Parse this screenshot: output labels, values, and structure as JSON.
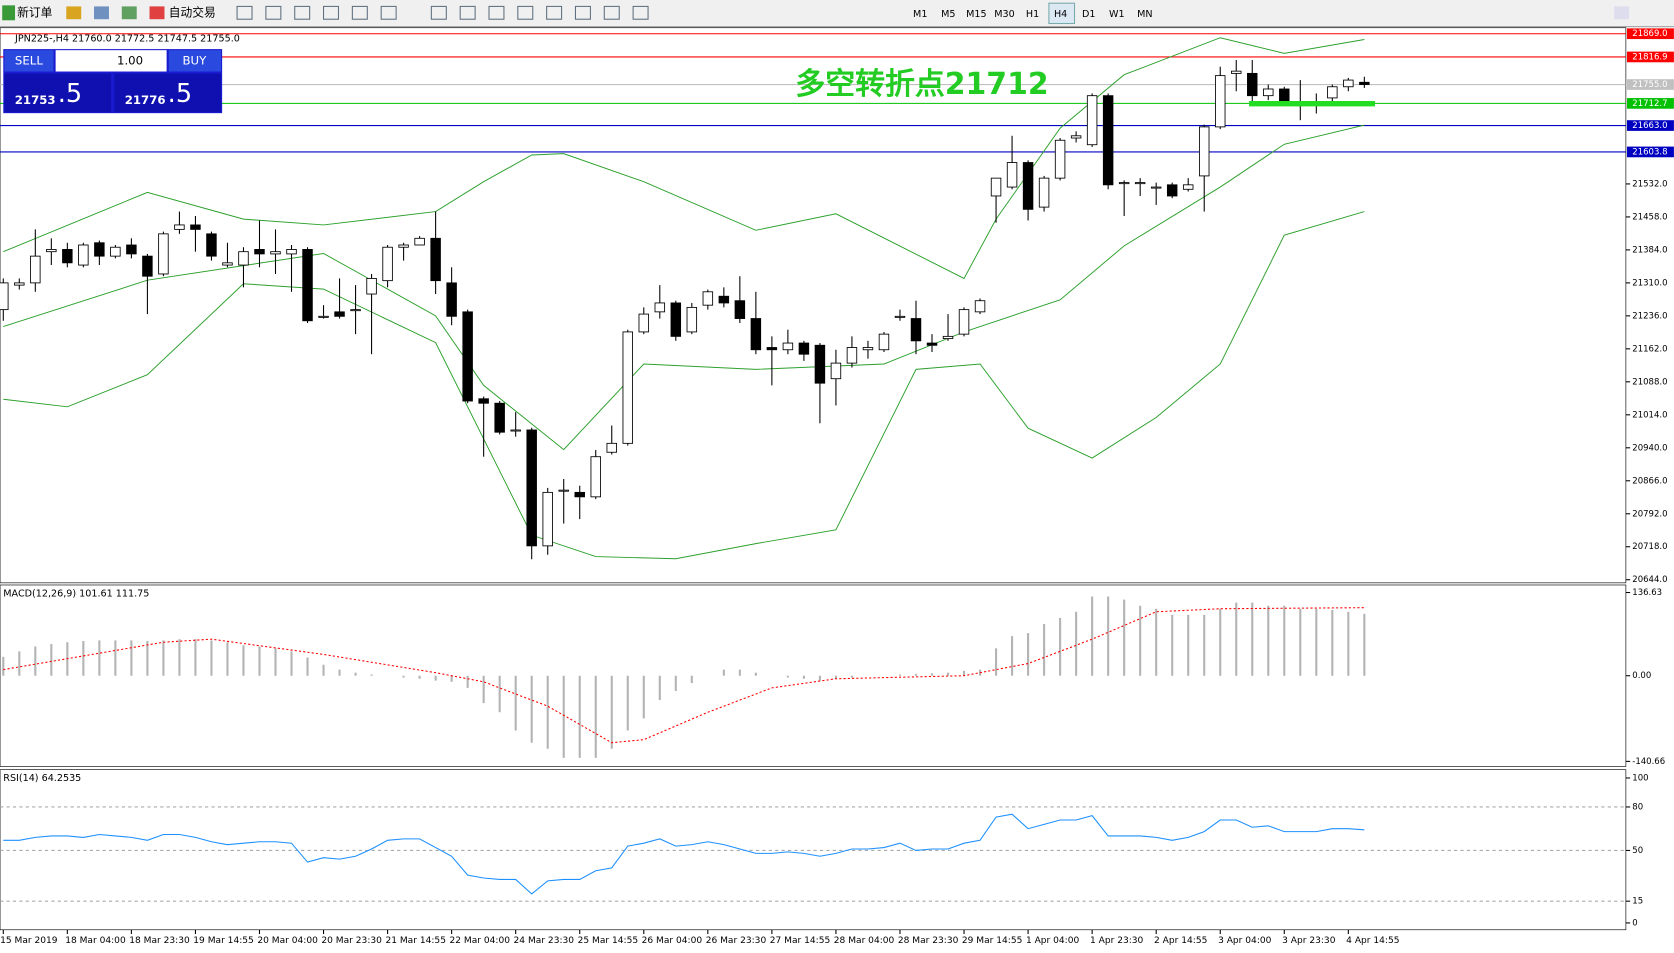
{
  "toolbar": {
    "new_order": "新订单",
    "auto_trading": "自动交易",
    "timeframes": [
      "M1",
      "M5",
      "M15",
      "M30",
      "H1",
      "H4",
      "D1",
      "W1",
      "MN"
    ]
  },
  "trade_panel": {
    "sell": "SELL",
    "buy": "BUY",
    "lots": "1.00",
    "bid_big": "21753",
    "bid_small": ".5",
    "ask_big": "21776",
    "ask_small": ".5"
  },
  "chart_data": {
    "type": "candlestick",
    "header": "JPN225-,H4  21760.0 21772.5 21747.5 21755.0",
    "annotation": {
      "text": "多空转折点21712",
      "value": 21712
    },
    "ylim": [
      20637,
      21880
    ],
    "yticks": [
      {
        "value": 21532,
        "label": "21532.0"
      },
      {
        "value": 21458,
        "label": "21458.0"
      },
      {
        "value": 21384,
        "label": "21384.0"
      },
      {
        "value": 21310,
        "label": "21310.0"
      },
      {
        "value": 21236,
        "label": "21236.0"
      },
      {
        "value": 21162,
        "label": "21162.0"
      },
      {
        "value": 21088,
        "label": "21088.0"
      },
      {
        "value": 21014,
        "label": "21014.0"
      },
      {
        "value": 20940,
        "label": "20940.0"
      },
      {
        "value": 20866,
        "label": "20866.0"
      },
      {
        "value": 20792,
        "label": "20792.0"
      },
      {
        "value": 20718,
        "label": "20718.0"
      },
      {
        "value": 20644,
        "label": "20644.0"
      }
    ],
    "levels": [
      {
        "value": 21869,
        "label": "21869.0",
        "color": "#ff0000"
      },
      {
        "value": 21816.9,
        "label": "21816.9",
        "color": "#ff0000"
      },
      {
        "value": 21755,
        "label": "21755.0",
        "color": "#c0c0c0"
      },
      {
        "value": 21712.7,
        "label": "21712.7",
        "color": "#00c000"
      },
      {
        "value": 21663,
        "label": "21663.0",
        "color": "#0000c0"
      },
      {
        "value": 21603.8,
        "label": "21603.8",
        "color": "#0000c0"
      }
    ],
    "x_labels": [
      "15 Mar 2019",
      "18 Mar 04:00",
      "18 Mar 23:30",
      "19 Mar 14:55",
      "20 Mar 04:00",
      "20 Mar 23:30",
      "21 Mar 14:55",
      "22 Mar 04:00",
      "24 Mar 23:30",
      "25 Mar 14:55",
      "26 Mar 04:00",
      "26 Mar 23:30",
      "27 Mar 14:55",
      "28 Mar 04:00",
      "28 Mar 23:30",
      "29 Mar 14:55",
      "1 Apr 04:00",
      "1 Apr 23:30",
      "2 Apr 14:55",
      "3 Apr 04:00",
      "3 Apr 23:30",
      "4 Apr 14:55"
    ],
    "candles": {
      "open": [
        21250,
        21305,
        21310,
        21380,
        21385,
        21350,
        21400,
        21370,
        21395,
        21370,
        21330,
        21430,
        21440,
        21420,
        21350,
        21350,
        21385,
        21375,
        21375,
        21385,
        21235,
        21245,
        21250,
        21285,
        21315,
        21390,
        21395,
        21410,
        21310,
        21245,
        21050,
        21040,
        20980,
        20980,
        20720,
        20845,
        20840,
        20830,
        20930,
        20950,
        21200,
        21245,
        21265,
        21200,
        21260,
        21280,
        21270,
        21230,
        21165,
        21160,
        21175,
        21170,
        21095,
        21130,
        21160,
        21160,
        21235,
        21230,
        21175,
        21185,
        21195,
        21245,
        21505,
        21525,
        21580,
        21480,
        21545,
        21635,
        21620,
        21730,
        21535,
        21535,
        21525,
        21530,
        21520,
        21550,
        21660,
        21780,
        21780,
        21730,
        21745,
        21710,
        21715,
        21725,
        21750,
        21760
      ],
      "high": [
        21320,
        21320,
        21430,
        21410,
        21400,
        21400,
        21405,
        21395,
        21410,
        21375,
        21425,
        21470,
        21460,
        21425,
        21400,
        21390,
        21450,
        21430,
        21395,
        21390,
        21260,
        21320,
        21305,
        21330,
        21395,
        21400,
        21415,
        21470,
        21345,
        21250,
        21055,
        21045,
        21020,
        20985,
        20850,
        20870,
        20855,
        20935,
        20990,
        21205,
        21255,
        21305,
        21270,
        21265,
        21295,
        21300,
        21325,
        21290,
        21190,
        21205,
        21180,
        21175,
        21160,
        21190,
        21180,
        21200,
        21250,
        21270,
        21195,
        21240,
        21255,
        21275,
        21545,
        21640,
        21585,
        21550,
        21635,
        21650,
        21735,
        21735,
        21540,
        21545,
        21535,
        21535,
        21545,
        21665,
        21795,
        21810,
        21810,
        21755,
        21750,
        21765,
        21735,
        21755,
        21770,
        21772.5
      ],
      "low": [
        21225,
        21295,
        21290,
        21350,
        21345,
        21345,
        21350,
        21365,
        21365,
        21240,
        21325,
        21420,
        21380,
        21360,
        21345,
        21300,
        21345,
        21330,
        21290,
        21220,
        21230,
        21230,
        21195,
        21150,
        21300,
        21360,
        21400,
        21285,
        21215,
        21040,
        20920,
        20970,
        20965,
        20690,
        20700,
        20770,
        20780,
        20825,
        20925,
        20945,
        21195,
        21230,
        21180,
        21195,
        21250,
        21255,
        21220,
        21150,
        21080,
        21150,
        21135,
        20995,
        21035,
        21120,
        21140,
        21155,
        21225,
        21150,
        21155,
        21180,
        21190,
        21240,
        21445,
        21520,
        21450,
        21470,
        21540,
        21625,
        21615,
        21520,
        21460,
        21505,
        21485,
        21500,
        21515,
        21470,
        21655,
        21740,
        21715,
        21720,
        21710,
        21675,
        21690,
        21715,
        21740,
        21747.5
      ],
      "close": [
        21310,
        21310,
        21370,
        21385,
        21355,
        21395,
        21370,
        21390,
        21375,
        21325,
        21420,
        21440,
        21430,
        21370,
        21355,
        21380,
        21375,
        21380,
        21385,
        21225,
        21235,
        21235,
        21250,
        21320,
        21390,
        21395,
        21410,
        21315,
        21235,
        21045,
        21040,
        20975,
        20980,
        20720,
        20840,
        20845,
        20830,
        20920,
        20950,
        21200,
        21240,
        21265,
        21190,
        21255,
        21290,
        21265,
        21230,
        21160,
        21160,
        21175,
        21150,
        21085,
        21130,
        21165,
        21165,
        21195,
        21235,
        21180,
        21170,
        21190,
        21250,
        21270,
        21545,
        21580,
        21475,
        21545,
        21630,
        21640,
        21730,
        21530,
        21535,
        21535,
        21525,
        21505,
        21530,
        21660,
        21775,
        21785,
        21730,
        21745,
        21715,
        21710,
        21715,
        21750,
        21765,
        21755
      ]
    },
    "bands": [
      {
        "name": "upper",
        "color": "#2ca02c",
        "index": [
          0,
          9,
          15,
          20,
          27,
          30,
          33,
          35,
          40,
          47,
          52,
          60,
          62,
          66,
          70,
          76,
          80,
          85
        ],
        "values": [
          21380,
          21513,
          21453,
          21440,
          21470,
          21537,
          21597,
          21600,
          21537,
          21428,
          21465,
          21320,
          21453,
          21657,
          21777,
          21860,
          21825,
          21856
        ]
      },
      {
        "name": "middle",
        "color": "#2ca02c",
        "index": [
          0,
          9,
          20,
          27,
          30,
          35,
          40,
          47,
          55,
          60,
          66,
          70,
          76,
          80,
          85
        ],
        "values": [
          21212,
          21316,
          21376,
          21236,
          21080,
          20936,
          21128,
          21116,
          21128,
          21200,
          21272,
          21393,
          21525,
          21621,
          21664
        ]
      },
      {
        "name": "lower",
        "color": "#2ca02c",
        "index": [
          0,
          4,
          9,
          15,
          20,
          27,
          33,
          37,
          42,
          47,
          52,
          57,
          61,
          64,
          68,
          72,
          76,
          80,
          85
        ],
        "values": [
          21049,
          21032,
          21104,
          21308,
          21296,
          21176,
          20744,
          20696,
          20691,
          20725,
          20756,
          21116,
          21128,
          20984,
          20917,
          21008,
          21128,
          21417,
          21470
        ]
      }
    ],
    "macd": {
      "header": "MACD(12,26,9) 101.61 111.75",
      "ylim": [
        -149,
        149
      ],
      "yticks": [
        {
          "value": 136.63,
          "label": "136.63"
        },
        {
          "value": 0,
          "label": "0.00"
        },
        {
          "value": -140.66,
          "label": "-140.66"
        }
      ],
      "histogram": [
        31,
        40,
        48,
        52,
        55,
        57,
        58,
        58,
        58,
        57,
        58,
        60,
        60,
        58,
        55,
        50,
        48,
        45,
        40,
        30,
        18,
        10,
        5,
        2,
        0,
        -3,
        -5,
        -8,
        -10,
        -20,
        -45,
        -60,
        -90,
        -110,
        -120,
        -135,
        -135,
        -135,
        -120,
        -90,
        -70,
        -40,
        -25,
        -12,
        0,
        10,
        10,
        5,
        0,
        -3,
        -5,
        -8,
        -5,
        -3,
        0,
        0,
        2,
        3,
        4,
        5,
        8,
        10,
        45,
        65,
        70,
        85,
        95,
        105,
        130,
        130,
        125,
        115,
        110,
        100,
        100,
        100,
        110,
        120,
        120,
        115,
        115,
        110,
        110,
        108,
        105,
        101.61
      ],
      "hist_color": "#b4b4b4",
      "signal": {
        "color": "#ff0000",
        "index": [
          0,
          10,
          13,
          20,
          27,
          30,
          34,
          38,
          40,
          44,
          48,
          52,
          60,
          64,
          68,
          72,
          76,
          85
        ],
        "values": [
          10,
          55,
          60,
          35,
          5,
          -10,
          -50,
          -110,
          -105,
          -60,
          -20,
          -5,
          0,
          20,
          60,
          105,
          110,
          111.75
        ]
      }
    },
    "rsi": {
      "header": "RSI(14) 64.2535",
      "ylim": [
        -4,
        105
      ],
      "yticks": [
        100,
        80,
        50,
        15,
        0
      ],
      "levels": [
        80,
        50,
        15
      ],
      "color": "#1e90ff",
      "values": [
        57,
        57,
        59,
        60,
        60,
        59,
        61,
        60,
        59,
        57,
        61,
        61,
        59,
        56,
        54,
        55,
        56,
        56,
        55,
        42,
        45,
        44,
        46,
        51,
        57,
        58,
        58,
        52,
        46,
        33,
        31,
        30,
        30,
        20,
        29,
        30,
        30,
        36,
        38,
        53,
        55,
        58,
        53,
        54,
        56,
        54,
        51,
        48,
        48,
        49,
        48,
        46,
        48,
        51,
        51,
        52,
        55,
        50,
        51,
        51,
        55,
        57,
        73,
        75,
        65,
        68,
        71,
        71,
        74,
        60,
        60,
        60,
        59,
        57,
        59,
        63,
        71,
        71,
        66,
        67,
        63,
        63,
        63,
        65,
        65,
        64.2535
      ]
    }
  }
}
